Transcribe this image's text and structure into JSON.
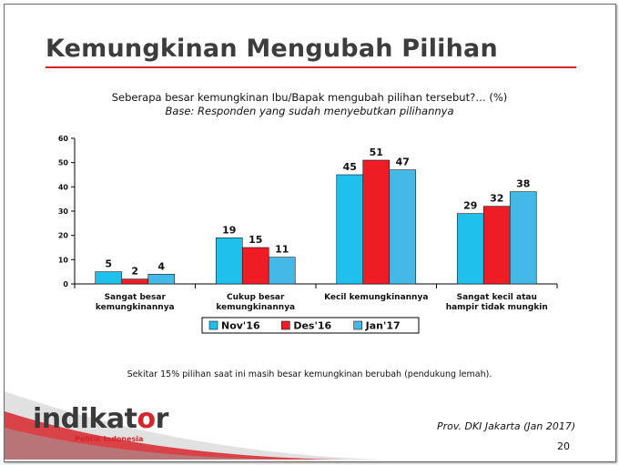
{
  "slide": {
    "title": "Kemungkinan Mengubah Pilihan",
    "question": "Seberapa besar kemungkinan Ibu/Bapak mengubah pilihan tersebut?… (%)",
    "base": "Base: Responden yang sudah menyebutkan pilihannya",
    "note": "Sekitar 15% pilihan saat ini masih besar kemungkinan berubah (pendukung lemah).",
    "source": "Prov. DKI Jakarta (Jan 2017)",
    "page_number": "20",
    "logo": {
      "word_before_o": "indikat",
      "letter_o": "o",
      "word_after_o": "r",
      "subtitle": "Politik Indonesia"
    },
    "colors": {
      "accent_red": "#d7262b",
      "title_gray": "#3d3d3d"
    }
  },
  "chart_data": {
    "type": "bar",
    "title": "Seberapa besar kemungkinan Ibu/Bapak mengubah pilihan tersebut?… (%)",
    "categories": [
      [
        "Sangat besar",
        "kemungkinannya"
      ],
      [
        "Cukup besar",
        "kemungkinannya"
      ],
      [
        "Kecil kemungkinannya"
      ],
      [
        "Sangat kecil atau",
        "hampir tidak mungkin"
      ]
    ],
    "series": [
      {
        "name": "Nov'16",
        "color": "#1fc0ec",
        "values": [
          5,
          19,
          45,
          29
        ]
      },
      {
        "name": "Des'16",
        "color": "#ee1c24",
        "values": [
          2,
          15,
          51,
          32
        ]
      },
      {
        "name": "Jan'17",
        "color": "#44b8e6",
        "values": [
          4,
          11,
          47,
          38
        ]
      }
    ],
    "ylim": [
      0,
      60
    ],
    "yticks": [
      0,
      10,
      20,
      30,
      40,
      50,
      60
    ],
    "grid": false,
    "legend": "bottom"
  }
}
